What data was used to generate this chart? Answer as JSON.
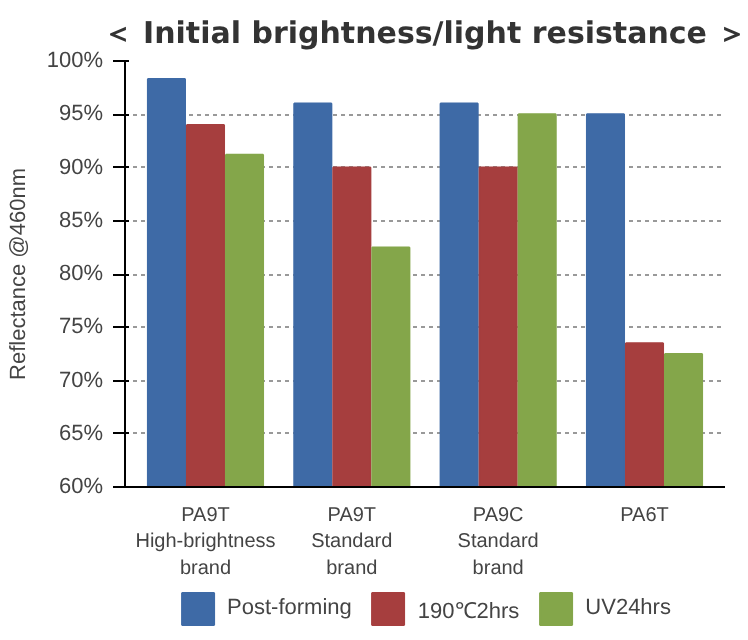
{
  "chart_data": {
    "type": "bar",
    "title": "＜ Initial brightness/light resistance ＞",
    "ylabel": "Reflectance @460nm",
    "categories": [
      "PA9T\nHigh-brightness\nbrand",
      "PA9T\nStandard\nbrand",
      "PA9C\nStandard\nbrand",
      "PA6T"
    ],
    "series": [
      {
        "name": "Post-forming",
        "color": "#3e6aa6",
        "values": [
          98.3,
          96,
          96,
          95
        ]
      },
      {
        "name": "190℃2hrs",
        "color": "#a63e3e",
        "values": [
          94,
          90,
          90,
          73.5
        ]
      },
      {
        "name": "UV24hrs",
        "color": "#84a64a",
        "values": [
          91.2,
          82.5,
          95,
          72.5
        ]
      }
    ],
    "ylim": [
      60,
      100
    ],
    "yticks": [
      {
        "value": 60,
        "label": "60%"
      },
      {
        "value": 65,
        "label": "65%"
      },
      {
        "value": 70,
        "label": "70%"
      },
      {
        "value": 75,
        "label": "75%"
      },
      {
        "value": 80,
        "label": "80%"
      },
      {
        "value": 85,
        "label": "85%"
      },
      {
        "value": 90,
        "label": "90%"
      },
      {
        "value": 95,
        "label": "95%"
      },
      {
        "value": 100,
        "label": "100%"
      }
    ],
    "grid": "y",
    "legend": "bottom"
  }
}
